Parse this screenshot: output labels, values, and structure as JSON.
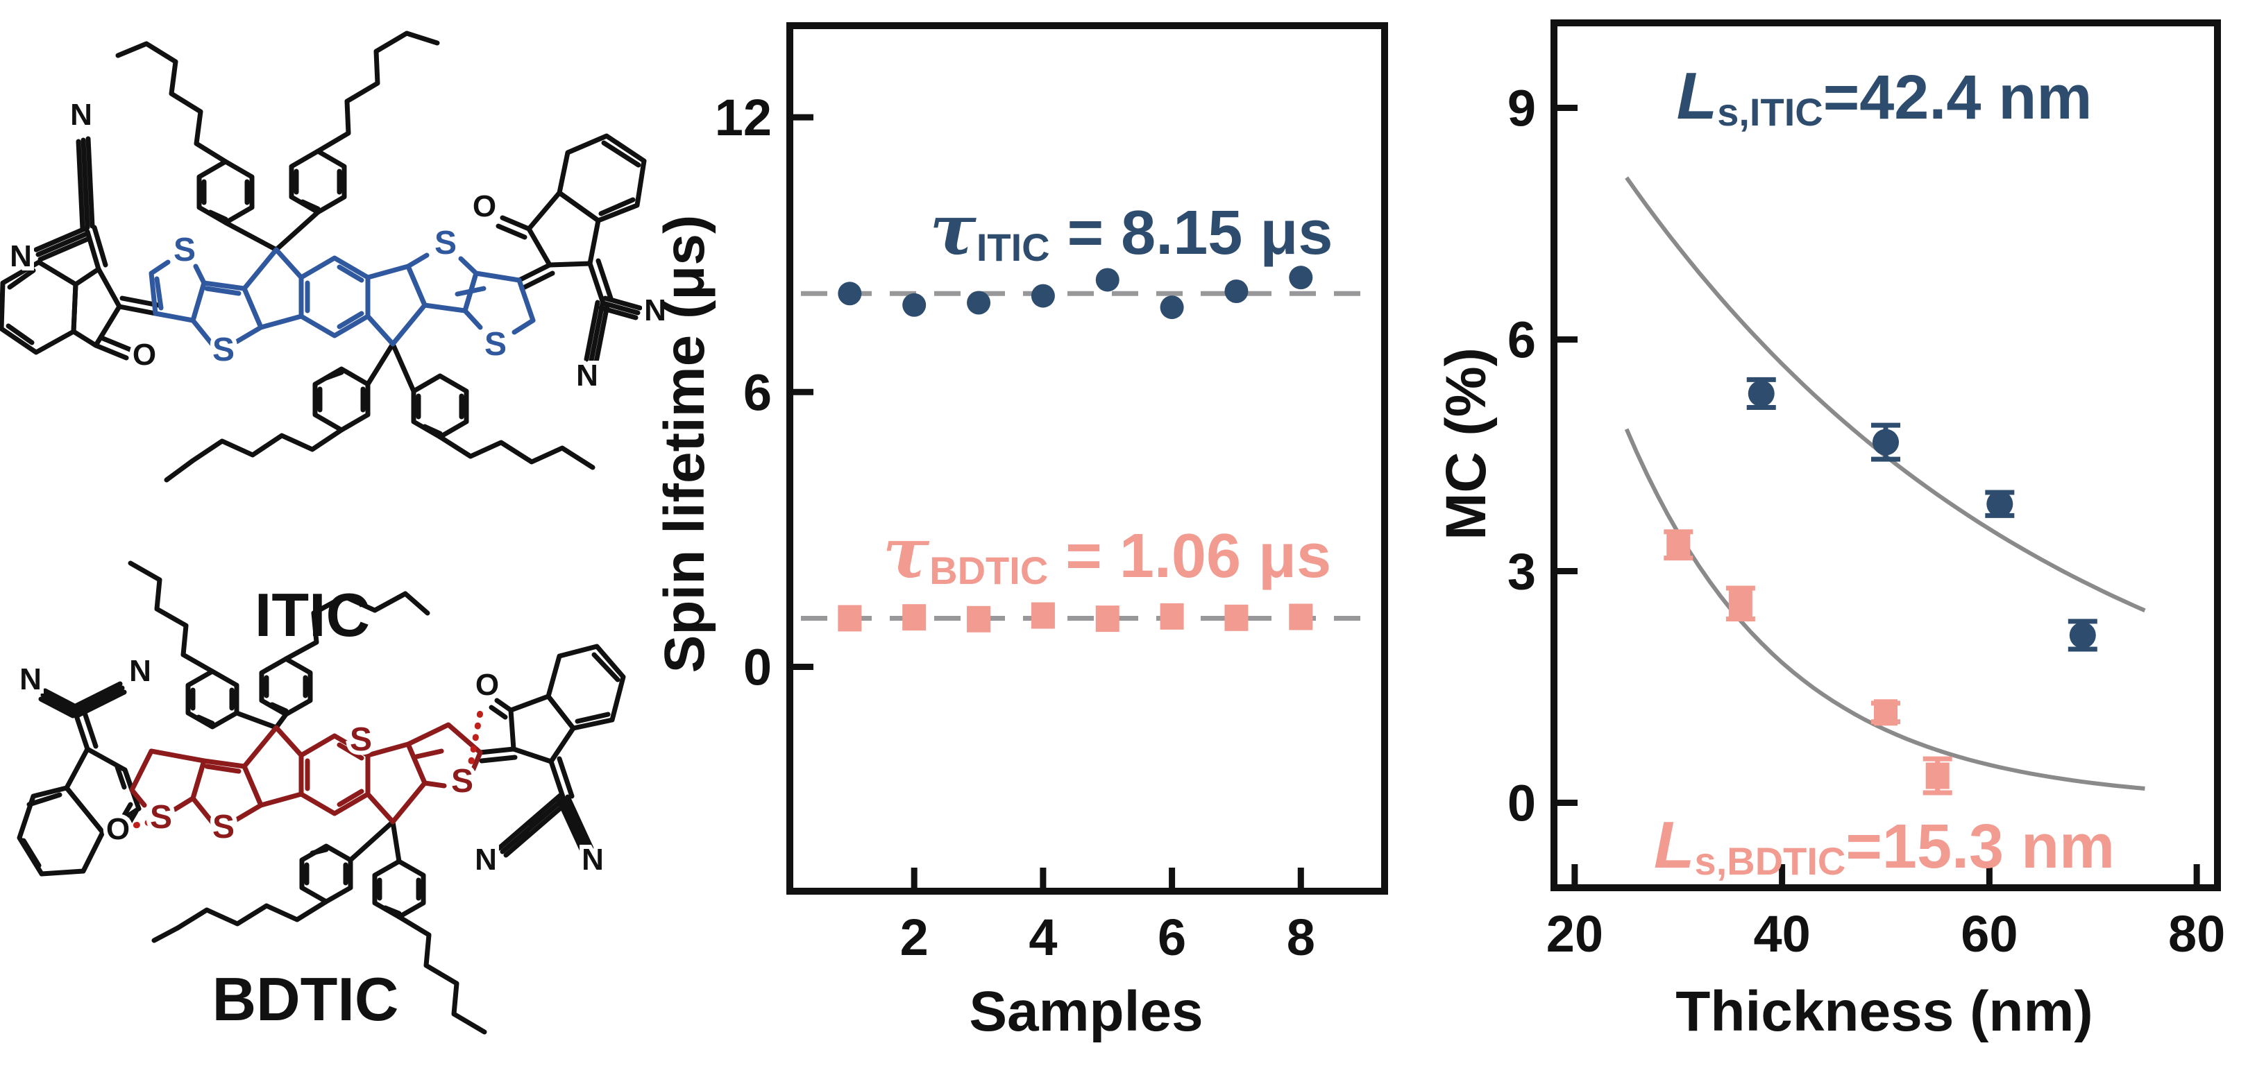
{
  "molecules": {
    "itic": {
      "label": "ITIC",
      "core_color": "#30589e"
    },
    "bdtic": {
      "label": "BDTIC",
      "core_color": "#8e1b1b"
    },
    "atoms": {
      "S": "S",
      "N": "N",
      "O": "O"
    }
  },
  "chart_data": [
    {
      "id": "chart-spin",
      "type": "scatter",
      "xlabel": "Samples",
      "ylabel": "Spin lifetime (μs)",
      "xlim": [
        0.07,
        9.3
      ],
      "ylim": [
        -4.9,
        14.0
      ],
      "xticks": [
        2,
        4,
        6,
        8
      ],
      "yticks": [
        0,
        6,
        12
      ],
      "grid": false,
      "legend": "none",
      "frame_color": "#111111",
      "ref_line_color": "#98989a",
      "series": [
        {
          "name": "ITIC",
          "marker": "circle",
          "color": "#2e4d6e",
          "ref_line": 8.15,
          "x": [
            1,
            2,
            3,
            4,
            5,
            6,
            7,
            8
          ],
          "y": [
            8.15,
            7.9,
            7.95,
            8.1,
            8.45,
            7.85,
            8.2,
            8.5
          ],
          "annotation": {
            "symbol": "τ",
            "sub": "ITIC",
            "rest": " = 8.15 μs"
          }
        },
        {
          "name": "BDTIC",
          "marker": "square",
          "color": "#f29b91",
          "ref_line": 1.06,
          "x": [
            1,
            2,
            3,
            4,
            5,
            6,
            7,
            8
          ],
          "y": [
            1.06,
            1.08,
            1.04,
            1.12,
            1.05,
            1.1,
            1.07,
            1.09
          ],
          "annotation": {
            "symbol": "τ",
            "sub": "BDTIC",
            "rest": " = 1.06 μs"
          }
        }
      ]
    },
    {
      "id": "chart-mc",
      "type": "scatter",
      "xlabel": "Thickness (nm)",
      "ylabel": "MC (%)",
      "xlim": [
        18,
        82
      ],
      "ylim": [
        -1.1,
        10.1
      ],
      "xticks": [
        20,
        40,
        60,
        80
      ],
      "yticks": [
        0,
        3,
        6,
        9
      ],
      "grid": false,
      "legend": "none",
      "frame_color": "#111111",
      "series": [
        {
          "name": "ITIC",
          "marker": "circle",
          "color": "#2e4d6e",
          "x": [
            38,
            50,
            61,
            69
          ],
          "y": [
            5.3,
            4.67,
            3.87,
            2.17
          ],
          "yerr": [
            0.18,
            0.22,
            0.15,
            0.18
          ],
          "fit": {
            "A": 14.6,
            "decay_length_nm": 42.4,
            "range": [
              25,
              75
            ],
            "color": "#8a8a8a"
          },
          "annotation": {
            "symbol": "L",
            "sub": "s,ITIC",
            "rest": "=42.4 nm"
          }
        },
        {
          "name": "BDTIC",
          "marker": "square",
          "color": "#f29b91",
          "x": [
            30,
            36,
            50,
            55
          ],
          "y": [
            3.34,
            2.58,
            1.17,
            0.35
          ],
          "yerr": [
            0.17,
            0.2,
            0.12,
            0.22
          ],
          "fit": {
            "A": 24.8,
            "decay_length_nm": 15.3,
            "range": [
              25,
              75
            ],
            "color": "#8a8a8a"
          },
          "annotation": {
            "symbol": "L",
            "sub": "s,BDTIC",
            "rest": "=15.3 nm"
          }
        }
      ]
    }
  ]
}
